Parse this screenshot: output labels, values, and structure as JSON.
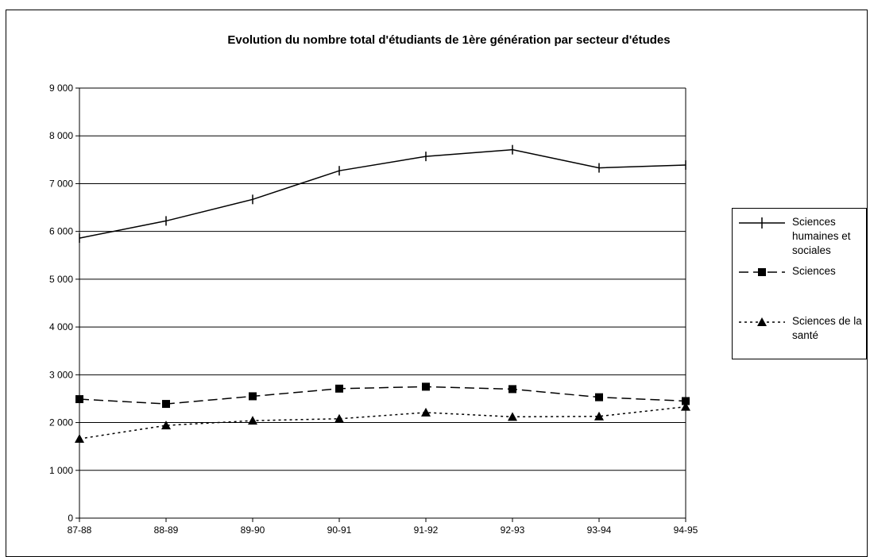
{
  "chart_data": {
    "type": "line",
    "title": "Evolution du nombre total d'étudiants de 1ère génération par secteur d'études",
    "categories": [
      "87-88",
      "88-89",
      "89-90",
      "90-91",
      "91-92",
      "92-93",
      "93-94",
      "94-95"
    ],
    "y_ticks": [
      "0",
      "1 000",
      "2 000",
      "3 000",
      "4 000",
      "5 000",
      "6 000",
      "7 000",
      "8 000",
      "9 000"
    ],
    "ylim": [
      0,
      9000
    ],
    "grid": true,
    "legend_position": "right",
    "series": [
      {
        "name": "Sciences humaines et sociales",
        "marker": "plus",
        "line_style": "solid",
        "color": "#000000",
        "values": [
          5860,
          6220,
          6670,
          7270,
          7570,
          7710,
          7330,
          7390
        ]
      },
      {
        "name": "Sciences",
        "marker": "square",
        "line_style": "dashed",
        "color": "#000000",
        "values": [
          2490,
          2390,
          2550,
          2710,
          2750,
          2700,
          2530,
          2450
        ]
      },
      {
        "name": "Sciences de la santé",
        "marker": "triangle",
        "line_style": "dotted",
        "color": "#000000",
        "values": [
          1660,
          1940,
          2040,
          2080,
          2210,
          2120,
          2130,
          2330
        ]
      }
    ]
  }
}
